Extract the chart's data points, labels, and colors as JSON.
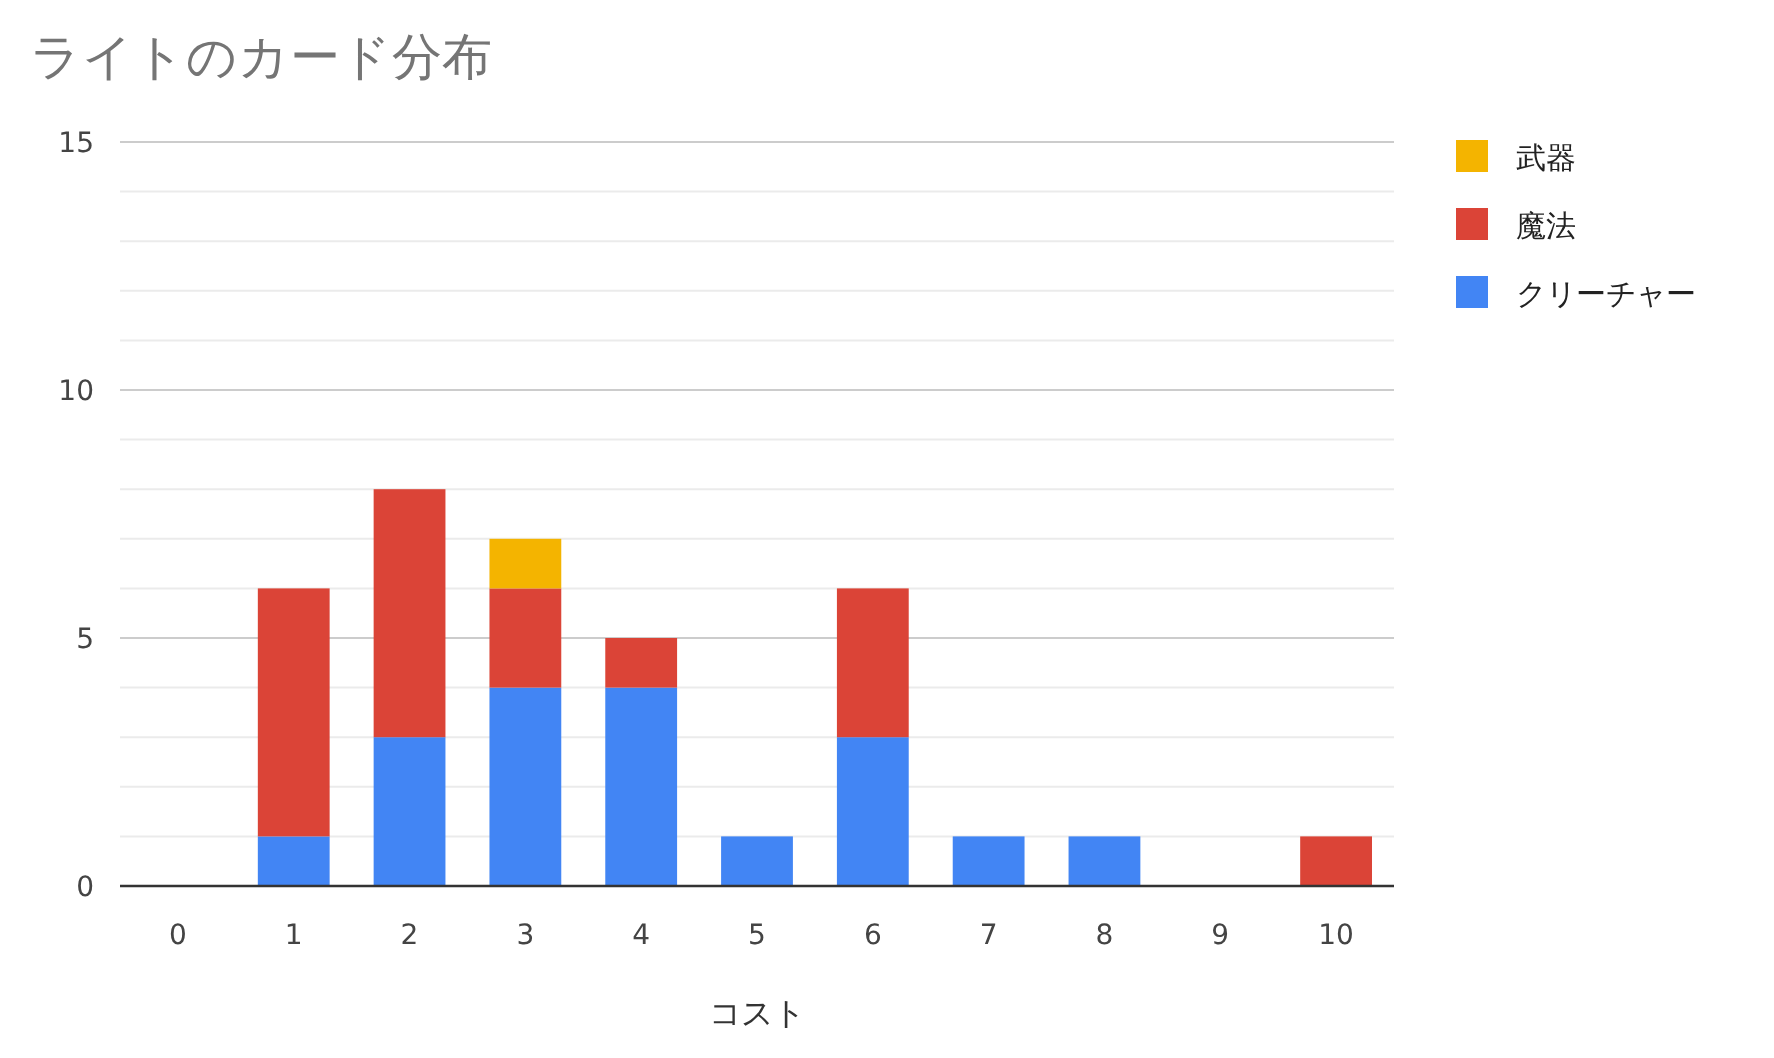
{
  "chart_data": {
    "type": "bar",
    "title": "ライトのカード分布",
    "xlabel": "コスト",
    "stacked": true,
    "legend": "right",
    "grid": "y",
    "categories": [
      "0",
      "1",
      "2",
      "3",
      "4",
      "5",
      "6",
      "7",
      "8",
      "9",
      "10"
    ],
    "series": [
      {
        "name": "クリーチャー",
        "color": "#4285f4",
        "values": [
          0,
          1,
          3,
          4,
          4,
          1,
          3,
          1,
          1,
          0,
          0
        ]
      },
      {
        "name": "魔法",
        "color": "#db4437",
        "values": [
          0,
          5,
          5,
          2,
          1,
          0,
          3,
          0,
          0,
          0,
          1
        ]
      },
      {
        "name": "武器",
        "color": "#f4b400",
        "values": [
          0,
          0,
          0,
          1,
          0,
          0,
          0,
          0,
          0,
          0,
          0
        ]
      }
    ],
    "ylim": [
      0,
      15
    ],
    "yticks": [
      0,
      {
        "value": 1,
        "label": null
      },
      {
        "value": 2,
        "label": null
      },
      {
        "value": 3,
        "label": null
      },
      {
        "value": 4,
        "label": null
      },
      5,
      {
        "value": 6,
        "label": null
      },
      {
        "value": 7,
        "label": null
      },
      {
        "value": 8,
        "label": null
      },
      {
        "value": 9,
        "label": null
      },
      10,
      {
        "value": 11,
        "label": null
      },
      {
        "value": 12,
        "label": null
      },
      {
        "value": 13,
        "label": null
      },
      {
        "value": 14,
        "label": null
      },
      15
    ]
  }
}
